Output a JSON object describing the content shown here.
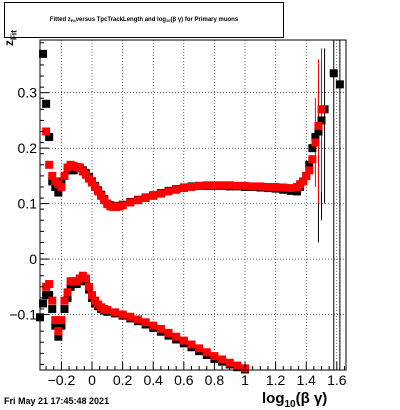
{
  "title_parts": {
    "pre": "Fitted z",
    "sub1": "Fit",
    "mid": " versus TpcTrackLength and log",
    "sub2": "10",
    "post": "(β γ) for Primary muons"
  },
  "footer": "Fri May 21 17:45:48 2021",
  "ylabel_parts": {
    "main": "z",
    "sub": "Fit"
  },
  "xlabel_parts": {
    "pre": "log",
    "sub": "10",
    "post": "(β γ)"
  },
  "colors": {
    "black_series": "#000000",
    "red_series": "#ff0000",
    "grid": "#000000"
  },
  "chart_data": {
    "type": "scatter",
    "grid": true,
    "xlim": [
      -0.34,
      1.66
    ],
    "ylim": [
      -0.2,
      0.395
    ],
    "xticks": [
      -0.2,
      0,
      0.2,
      0.4,
      0.6,
      0.8,
      1,
      1.2,
      1.4,
      1.6
    ],
    "xtick_labels": [
      "−0.2",
      "0",
      "0.2",
      "0.4",
      "0.6",
      "0.8",
      "1",
      "1.2",
      "1.4",
      "1.6"
    ],
    "yticks": [
      -0.1,
      0,
      0.1,
      0.2,
      0.3
    ],
    "ytick_labels": [
      "−0.1",
      "0",
      "0.1",
      "0.2",
      "0.3"
    ],
    "series": [
      {
        "color": "black",
        "points": [
          [
            -0.32,
            0.37
          ],
          [
            -0.3,
            0.28
          ],
          [
            -0.28,
            0.22
          ],
          [
            -0.26,
            0.14
          ],
          [
            -0.24,
            0.13
          ],
          [
            -0.22,
            0.12
          ],
          [
            -0.2,
            0.14
          ],
          [
            -0.18,
            0.15
          ],
          [
            -0.16,
            0.16
          ],
          [
            -0.14,
            0.16
          ],
          [
            -0.12,
            0.16
          ],
          [
            -0.1,
            0.165
          ],
          [
            -0.08,
            0.165
          ],
          [
            -0.06,
            0.16
          ],
          [
            -0.04,
            0.155
          ],
          [
            -0.02,
            0.148
          ],
          [
            0.0,
            0.14
          ],
          [
            0.02,
            0.132
          ],
          [
            0.04,
            0.124
          ],
          [
            0.06,
            0.116
          ],
          [
            0.08,
            0.108
          ],
          [
            0.1,
            0.1
          ],
          [
            0.12,
            0.097
          ],
          [
            0.14,
            0.095
          ],
          [
            0.16,
            0.095
          ],
          [
            0.18,
            0.096
          ],
          [
            0.2,
            0.098
          ],
          [
            0.25,
            0.103
          ],
          [
            0.3,
            0.107
          ],
          [
            0.35,
            0.111
          ],
          [
            0.4,
            0.115
          ],
          [
            0.45,
            0.119
          ],
          [
            0.5,
            0.123
          ],
          [
            0.55,
            0.126
          ],
          [
            0.6,
            0.129
          ],
          [
            0.65,
            0.131
          ],
          [
            0.7,
            0.132
          ],
          [
            0.75,
            0.132
          ],
          [
            0.8,
            0.132
          ],
          [
            0.85,
            0.132
          ],
          [
            0.9,
            0.131
          ],
          [
            0.95,
            0.131
          ],
          [
            1.0,
            0.13
          ],
          [
            1.05,
            0.13
          ],
          [
            1.1,
            0.129
          ],
          [
            1.15,
            0.128
          ],
          [
            1.2,
            0.127
          ],
          [
            1.25,
            0.125
          ],
          [
            1.3,
            0.123
          ],
          [
            1.34,
            0.122
          ],
          [
            1.36,
            0.13
          ],
          [
            1.38,
            0.14
          ],
          [
            1.4,
            0.15
          ],
          [
            1.42,
            0.17
          ],
          [
            1.44,
            0.2
          ],
          [
            1.46,
            0.22
          ],
          [
            1.48,
            0.23
          ],
          [
            1.5,
            0.25
          ],
          [
            1.52,
            0.27
          ],
          [
            1.58,
            0.335
          ],
          [
            1.62,
            0.315
          ],
          [
            -0.34,
            -0.105
          ],
          [
            -0.32,
            -0.08
          ],
          [
            -0.3,
            -0.065
          ],
          [
            -0.28,
            -0.065
          ],
          [
            -0.26,
            -0.09
          ],
          [
            -0.24,
            -0.12
          ],
          [
            -0.22,
            -0.14
          ],
          [
            -0.2,
            -0.12
          ],
          [
            -0.18,
            -0.09
          ],
          [
            -0.16,
            -0.07
          ],
          [
            -0.14,
            -0.05
          ],
          [
            -0.12,
            -0.045
          ],
          [
            -0.1,
            -0.045
          ],
          [
            -0.08,
            -0.04
          ],
          [
            -0.06,
            -0.035
          ],
          [
            -0.04,
            -0.04
          ],
          [
            -0.02,
            -0.055
          ],
          [
            0.0,
            -0.07
          ],
          [
            0.02,
            -0.08
          ],
          [
            0.04,
            -0.085
          ],
          [
            0.06,
            -0.09
          ],
          [
            0.08,
            -0.093
          ],
          [
            0.1,
            -0.095
          ],
          [
            0.15,
            -0.098
          ],
          [
            0.2,
            -0.102
          ],
          [
            0.25,
            -0.107
          ],
          [
            0.3,
            -0.112
          ],
          [
            0.35,
            -0.118
          ],
          [
            0.4,
            -0.124
          ],
          [
            0.45,
            -0.131
          ],
          [
            0.5,
            -0.138
          ],
          [
            0.55,
            -0.145
          ],
          [
            0.6,
            -0.152
          ],
          [
            0.65,
            -0.159
          ],
          [
            0.7,
            -0.166
          ],
          [
            0.75,
            -0.173
          ],
          [
            0.8,
            -0.18
          ],
          [
            0.85,
            -0.185
          ],
          [
            0.9,
            -0.19
          ],
          [
            0.95,
            -0.195
          ],
          [
            1.0,
            -0.199
          ]
        ]
      },
      {
        "color": "red",
        "points": [
          [
            -0.3,
            0.23
          ],
          [
            -0.28,
            0.17
          ],
          [
            -0.26,
            0.15
          ],
          [
            -0.24,
            0.14
          ],
          [
            -0.22,
            0.135
          ],
          [
            -0.2,
            0.13
          ],
          [
            -0.18,
            0.15
          ],
          [
            -0.16,
            0.165
          ],
          [
            -0.14,
            0.17
          ],
          [
            -0.12,
            0.168
          ],
          [
            -0.1,
            0.166
          ],
          [
            -0.08,
            0.164
          ],
          [
            -0.06,
            0.158
          ],
          [
            -0.04,
            0.152
          ],
          [
            -0.02,
            0.145
          ],
          [
            0.0,
            0.138
          ],
          [
            0.02,
            0.13
          ],
          [
            0.04,
            0.122
          ],
          [
            0.06,
            0.114
          ],
          [
            0.08,
            0.106
          ],
          [
            0.1,
            0.099
          ],
          [
            0.12,
            0.095
          ],
          [
            0.14,
            0.094
          ],
          [
            0.16,
            0.094
          ],
          [
            0.18,
            0.095
          ],
          [
            0.2,
            0.097
          ],
          [
            0.25,
            0.102
          ],
          [
            0.3,
            0.106
          ],
          [
            0.35,
            0.11
          ],
          [
            0.4,
            0.114
          ],
          [
            0.45,
            0.118
          ],
          [
            0.5,
            0.122
          ],
          [
            0.55,
            0.125
          ],
          [
            0.6,
            0.128
          ],
          [
            0.65,
            0.13
          ],
          [
            0.7,
            0.132
          ],
          [
            0.75,
            0.133
          ],
          [
            0.8,
            0.133
          ],
          [
            0.85,
            0.133
          ],
          [
            0.9,
            0.133
          ],
          [
            0.95,
            0.132
          ],
          [
            1.0,
            0.132
          ],
          [
            1.05,
            0.131
          ],
          [
            1.1,
            0.131
          ],
          [
            1.15,
            0.13
          ],
          [
            1.2,
            0.13
          ],
          [
            1.25,
            0.129
          ],
          [
            1.3,
            0.128
          ],
          [
            1.34,
            0.13
          ],
          [
            1.36,
            0.135
          ],
          [
            1.38,
            0.14
          ],
          [
            1.4,
            0.15
          ],
          [
            1.42,
            0.16
          ],
          [
            1.44,
            0.18
          ],
          [
            1.46,
            0.21
          ],
          [
            1.48,
            0.24
          ],
          [
            1.5,
            0.27
          ],
          [
            -0.3,
            -0.05
          ],
          [
            -0.28,
            -0.045
          ],
          [
            -0.26,
            -0.075
          ],
          [
            -0.24,
            -0.11
          ],
          [
            -0.22,
            -0.13
          ],
          [
            -0.2,
            -0.11
          ],
          [
            -0.18,
            -0.075
          ],
          [
            -0.16,
            -0.06
          ],
          [
            -0.14,
            -0.04
          ],
          [
            -0.12,
            -0.04
          ],
          [
            -0.1,
            -0.04
          ],
          [
            -0.08,
            -0.035
          ],
          [
            -0.06,
            -0.03
          ],
          [
            -0.04,
            -0.035
          ],
          [
            -0.02,
            -0.05
          ],
          [
            0.0,
            -0.065
          ],
          [
            0.02,
            -0.075
          ],
          [
            0.04,
            -0.082
          ],
          [
            0.06,
            -0.087
          ],
          [
            0.08,
            -0.09
          ],
          [
            0.1,
            -0.092
          ],
          [
            0.15,
            -0.096
          ],
          [
            0.2,
            -0.1
          ],
          [
            0.25,
            -0.104
          ],
          [
            0.3,
            -0.109
          ],
          [
            0.35,
            -0.114
          ],
          [
            0.4,
            -0.12
          ],
          [
            0.45,
            -0.126
          ],
          [
            0.5,
            -0.133
          ],
          [
            0.55,
            -0.14
          ],
          [
            0.6,
            -0.147
          ],
          [
            0.65,
            -0.154
          ],
          [
            0.7,
            -0.161
          ],
          [
            0.75,
            -0.168
          ],
          [
            0.8,
            -0.175
          ],
          [
            0.85,
            -0.181
          ],
          [
            0.9,
            -0.187
          ],
          [
            0.95,
            -0.192
          ],
          [
            1.0,
            -0.197
          ]
        ]
      }
    ],
    "error_bars": [
      {
        "series": "black",
        "x": 1.48,
        "ylo": 0.03,
        "yhi": 0.32
      },
      {
        "series": "black",
        "x": 1.5,
        "ylo": 0.07,
        "yhi": 0.36
      },
      {
        "series": "black",
        "x": 1.52,
        "ylo": 0.1,
        "yhi": 0.38
      },
      {
        "series": "black",
        "x": 1.58,
        "ylo": -0.2,
        "yhi": 0.395
      },
      {
        "series": "black",
        "x": 1.62,
        "ylo": -0.2,
        "yhi": 0.395
      },
      {
        "series": "red",
        "x": 1.46,
        "ylo": 0.13,
        "yhi": 0.29
      },
      {
        "series": "red",
        "x": 1.48,
        "ylo": 0.1,
        "yhi": 0.36
      },
      {
        "series": "red",
        "x": 1.5,
        "ylo": 0.12,
        "yhi": 0.38
      }
    ]
  }
}
